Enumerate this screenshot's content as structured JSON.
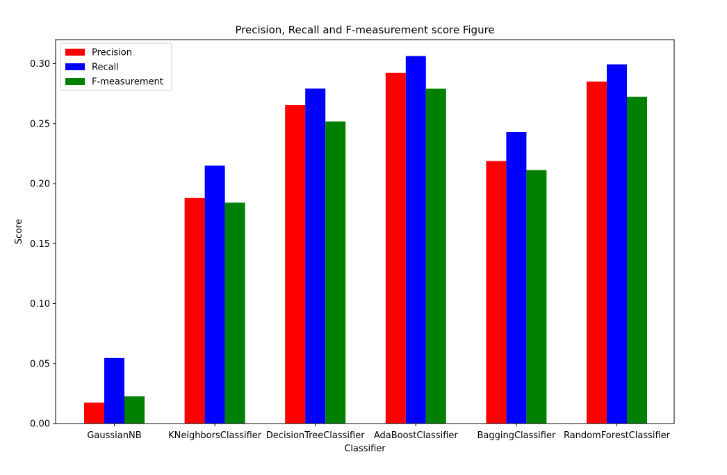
{
  "chart_data": {
    "type": "bar",
    "title": "Precision, Recall and F-measurement score Figure",
    "xlabel": "Classifier",
    "ylabel": "Score",
    "categories": [
      "GaussianNB",
      "KNeighborsClassifier",
      "DecisionTreeClassifier",
      "AdaBoostClassifier",
      "BaggingClassifier",
      "RandomForestClassifier"
    ],
    "series": [
      {
        "name": "Precision",
        "color": "#ff0000",
        "values": [
          0.0175,
          0.188,
          0.2655,
          0.2923,
          0.2188,
          0.285
        ]
      },
      {
        "name": "Recall",
        "color": "#0000ff",
        "values": [
          0.0546,
          0.215,
          0.2792,
          0.3063,
          0.2429,
          0.2994
        ]
      },
      {
        "name": "F-measurement",
        "color": "#008000",
        "values": [
          0.0227,
          0.1841,
          0.2518,
          0.2791,
          0.2113,
          0.2724
        ]
      }
    ],
    "ylim": [
      0,
      0.32
    ],
    "yticks": [
      0.0,
      0.05,
      0.1,
      0.15,
      0.2,
      0.25,
      0.3
    ],
    "ytick_labels": [
      "0.00",
      "0.05",
      "0.10",
      "0.15",
      "0.20",
      "0.25",
      "0.30"
    ],
    "grid": false,
    "legend_position": "top-left"
  }
}
